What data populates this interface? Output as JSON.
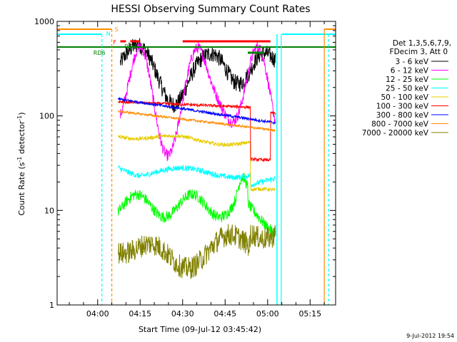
{
  "chart_data": {
    "type": "line",
    "title": "HESSI Observing Summary Count Rates",
    "xlabel": "Start Time (09-Jul-12 03:45:42)",
    "ylabel_main": "Count Rate (s",
    "ylabel_sup": "-1",
    "ylabel_mid": " detector",
    "ylabel_end": ")",
    "x_ticks": [
      "04:00",
      "04:15",
      "04:30",
      "04:45",
      "05:00",
      "05:15"
    ],
    "x_tick_minutes": [
      240,
      255,
      270,
      285,
      300,
      315
    ],
    "xlim_minutes": [
      225.7,
      324.0
    ],
    "ylim": [
      1,
      1000
    ],
    "y_scale": "log",
    "y_ticks": [
      "1",
      "10",
      "100",
      "1000"
    ],
    "y_tick_values": [
      1,
      10,
      100,
      1000
    ],
    "footer_date": "9-Jul-2012 19:54",
    "legend_header": [
      "Det 1,3,5,6,7,9,",
      "FDecim 3, Att 0"
    ],
    "legend_position": "right",
    "flag_labels": {
      "S": "S",
      "N": "N",
      "F": "F",
      "RDG": "RDG",
      "RD6": "RD6"
    },
    "series": [
      {
        "name": "3 - 6 keV",
        "color": "#000000"
      },
      {
        "name": "6 - 12 keV",
        "color": "#ff00ff"
      },
      {
        "name": "12 - 25 keV",
        "color": "#00ff00"
      },
      {
        "name": "25 - 50 keV",
        "color": "#00ffff"
      },
      {
        "name": "50 - 100 keV",
        "color": "#e6cc00"
      },
      {
        "name": "100 - 300 keV",
        "color": "#ff0000"
      },
      {
        "name": "300 - 800 keV",
        "color": "#0000ff"
      },
      {
        "name": "800 - 7000 keV",
        "color": "#ff8c00"
      },
      {
        "name": "7000 - 20000 keV",
        "color": "#808000"
      }
    ]
  }
}
